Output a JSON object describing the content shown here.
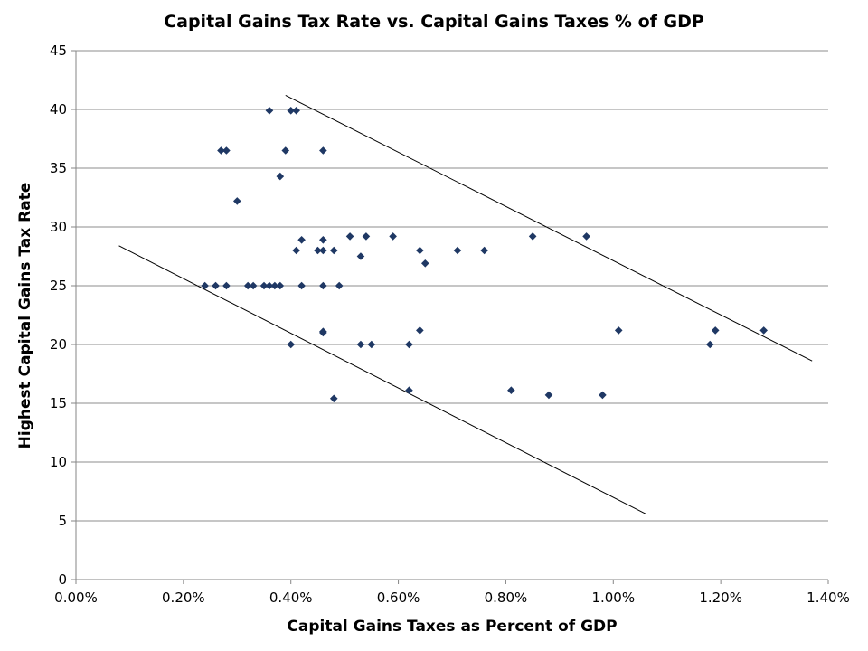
{
  "chart_data": {
    "type": "scatter",
    "title": "Capital Gains Tax Rate vs. Capital Gains Taxes % of GDP",
    "xlabel": "Capital Gains Taxes as Percent of GDP",
    "ylabel": "Highest Capital Gains Tax Rate",
    "xlim": [
      0,
      1.4
    ],
    "ylim": [
      0,
      45
    ],
    "x_ticks": [
      0,
      0.2,
      0.4,
      0.6,
      0.8,
      1.0,
      1.2,
      1.4
    ],
    "x_tick_labels": [
      "0.00%",
      "0.20%",
      "0.40%",
      "0.60%",
      "0.80%",
      "1.00%",
      "1.20%",
      "1.40%"
    ],
    "y_ticks": [
      0,
      5,
      10,
      15,
      20,
      25,
      30,
      35,
      40,
      45
    ],
    "y_tick_labels": [
      "0",
      "5",
      "10",
      "15",
      "20",
      "25",
      "30",
      "35",
      "40",
      "45"
    ],
    "grid": "horizontal",
    "legend": "none",
    "marker": "diamond",
    "marker_color": "#1f3864",
    "gridline_color": "#8c8c8c",
    "series": [
      {
        "points": [
          [
            0.24,
            25.0
          ],
          [
            0.26,
            25.0
          ],
          [
            0.28,
            25.0
          ],
          [
            0.32,
            25.0
          ],
          [
            0.33,
            25.0
          ],
          [
            0.35,
            25.0
          ],
          [
            0.36,
            25.0
          ],
          [
            0.37,
            25.0
          ],
          [
            0.38,
            25.0
          ],
          [
            0.42,
            25.0
          ],
          [
            0.46,
            25.0
          ],
          [
            0.49,
            25.0
          ],
          [
            0.27,
            36.5
          ],
          [
            0.28,
            36.5
          ],
          [
            0.39,
            36.5
          ],
          [
            0.46,
            36.5
          ],
          [
            0.36,
            39.9
          ],
          [
            0.4,
            39.9
          ],
          [
            0.41,
            39.9
          ],
          [
            0.3,
            32.2
          ],
          [
            0.38,
            34.3
          ],
          [
            0.41,
            28.0
          ],
          [
            0.42,
            28.9
          ],
          [
            0.45,
            28.0
          ],
          [
            0.46,
            28.9
          ],
          [
            0.46,
            28.0
          ],
          [
            0.48,
            28.0
          ],
          [
            0.51,
            29.2
          ],
          [
            0.53,
            27.5
          ],
          [
            0.54,
            29.2
          ],
          [
            0.59,
            29.2
          ],
          [
            0.64,
            28.0
          ],
          [
            0.65,
            26.9
          ],
          [
            0.71,
            28.0
          ],
          [
            0.76,
            28.0
          ],
          [
            0.85,
            29.2
          ],
          [
            0.95,
            29.2
          ],
          [
            0.4,
            20.0
          ],
          [
            0.46,
            21.1
          ],
          [
            0.46,
            21.0
          ],
          [
            0.53,
            20.0
          ],
          [
            0.55,
            20.0
          ],
          [
            0.62,
            20.0
          ],
          [
            0.64,
            21.2
          ],
          [
            1.01,
            21.2
          ],
          [
            1.18,
            20.0
          ],
          [
            1.19,
            21.2
          ],
          [
            1.28,
            21.2
          ],
          [
            0.48,
            15.4
          ],
          [
            0.62,
            16.1
          ],
          [
            0.81,
            16.1
          ],
          [
            0.88,
            15.7
          ],
          [
            0.98,
            15.7
          ]
        ]
      }
    ],
    "trend_lines": [
      {
        "from": [
          0.39,
          41.2
        ],
        "to": [
          1.37,
          18.6
        ]
      },
      {
        "from": [
          0.08,
          28.4
        ],
        "to": [
          1.06,
          5.6
        ]
      }
    ]
  }
}
